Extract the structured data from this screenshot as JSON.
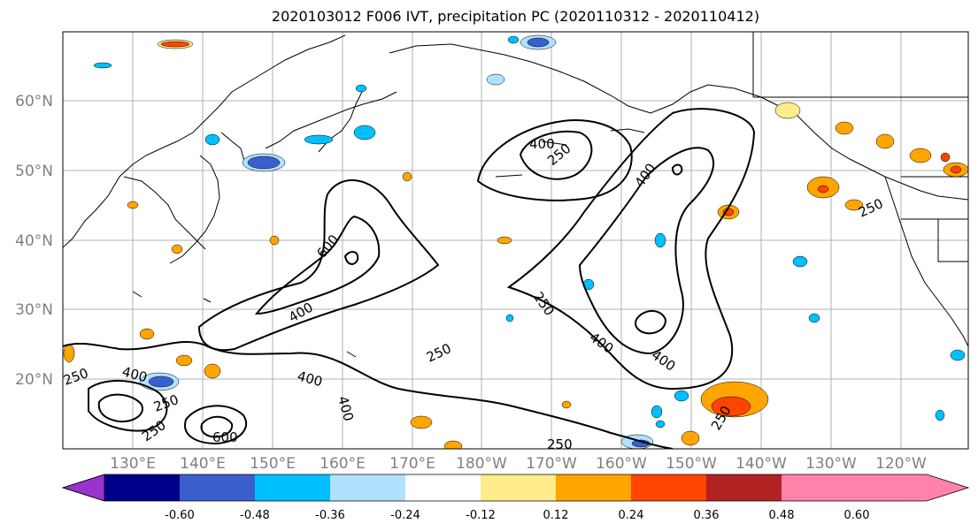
{
  "title": "2020103012 F006 IVT, precipitation PC (2020110312 - 2020110412)",
  "lat_labels": [
    "60°N",
    "50°N",
    "40°N",
    "30°N",
    "20°N"
  ],
  "lon_labels": [
    "130°E",
    "140°E",
    "150°E",
    "160°E",
    "170°E",
    "180°W",
    "170°W",
    "160°W",
    "150°W",
    "140°W",
    "130°W",
    "120°W"
  ],
  "colorbar": {
    "colors": [
      "#9933cc",
      "#00008b",
      "#3a5fcd",
      "#00bfff",
      "#b0e2ff",
      "#ffffff",
      "#ffec8b",
      "#ffa500",
      "#ff4500",
      "#b22222",
      "#ff82ab"
    ],
    "tick_labels": [
      "-0.60",
      "-0.48",
      "-0.36",
      "-0.24",
      "-0.12",
      "0.12",
      "0.24",
      "0.36",
      "0.48",
      "0.60"
    ]
  },
  "contour_labels": [
    "400",
    "250",
    "600",
    "400",
    "400",
    "250",
    "400",
    "250",
    "400",
    "250",
    "400",
    "600",
    "400",
    "250",
    "400",
    "250",
    "250",
    "250",
    "250"
  ]
}
